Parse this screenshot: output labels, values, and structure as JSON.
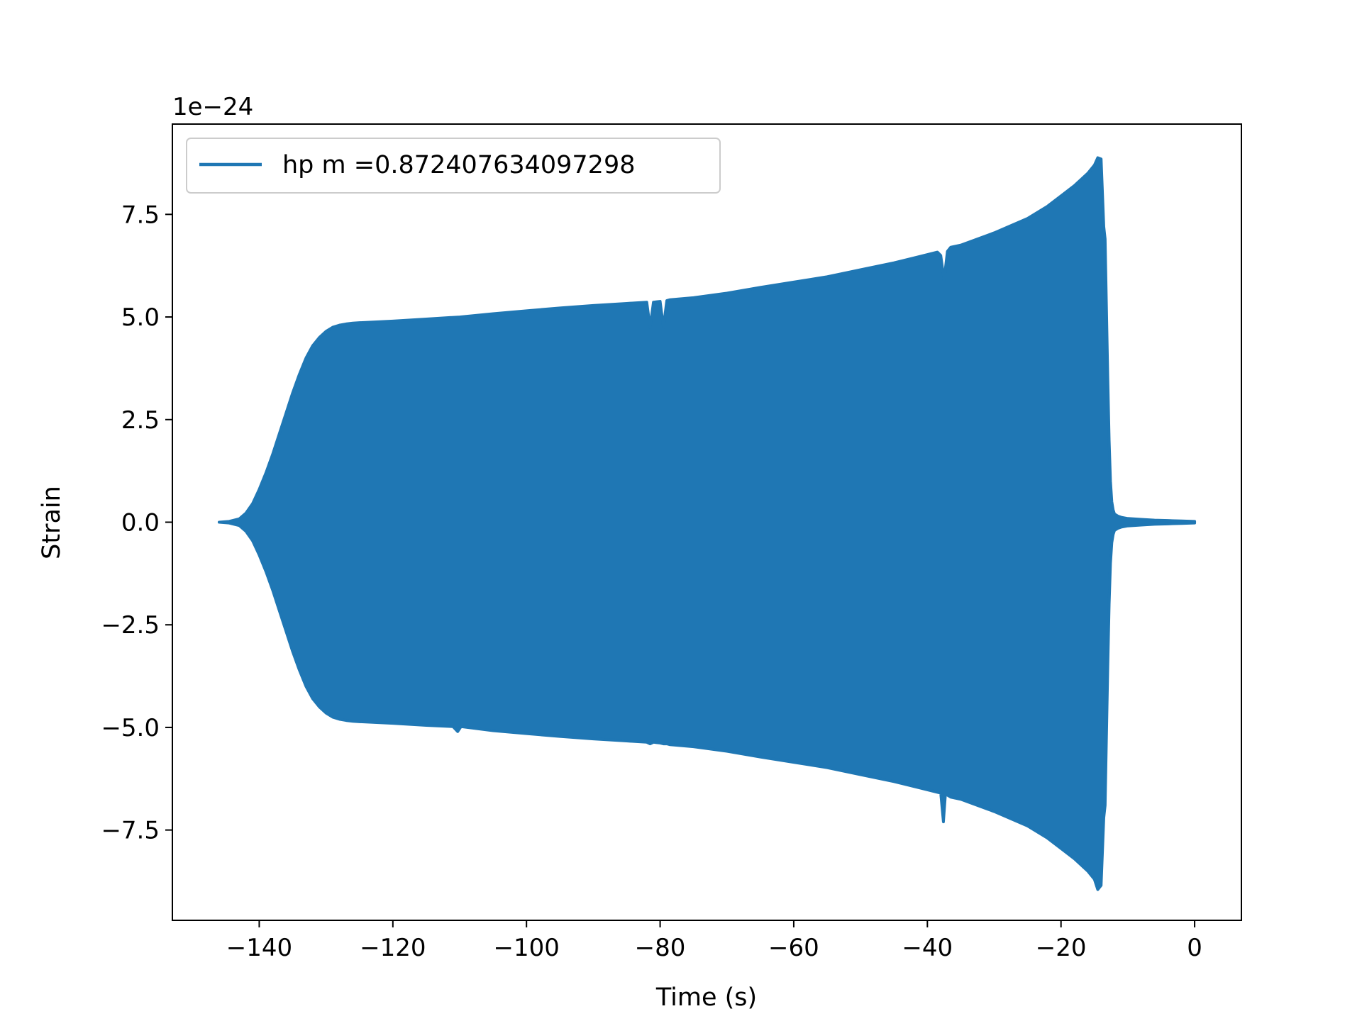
{
  "chart_data": {
    "type": "area",
    "xlabel": "Time (s)",
    "ylabel": "Strain",
    "y_offset_text": "1e−24",
    "y_scale": 1e-24,
    "xlim": [
      -153,
      7
    ],
    "ylim": [
      -9.7,
      9.7
    ],
    "x_ticks": [
      -140,
      -120,
      -100,
      -80,
      -60,
      -40,
      -20,
      0
    ],
    "x_tick_labels": [
      "−140",
      "−120",
      "−100",
      "−80",
      "−60",
      "−40",
      "−20",
      "0"
    ],
    "y_ticks": [
      -7.5,
      -5.0,
      -2.5,
      0.0,
      2.5,
      5.0,
      7.5
    ],
    "y_tick_labels": [
      "−7.5",
      "−5.0",
      "−2.5",
      "0.0",
      "2.5",
      "5.0",
      "7.5"
    ],
    "grid": false,
    "legend_position": "upper-left",
    "series": [
      {
        "name": "hp m =0.872407634097298",
        "color": "#1f77b4",
        "envelope_upper": {
          "x": [
            -146,
            -144.5,
            -143,
            -142,
            -141,
            -140,
            -139,
            -138,
            -137,
            -136,
            -135,
            -134,
            -133,
            -132,
            -131,
            -130,
            -129,
            -128,
            -127,
            -126,
            -125,
            -120,
            -115,
            -110,
            -105,
            -100,
            -95,
            -90,
            -85,
            -82,
            -81.5,
            -81,
            -80.5,
            -80,
            -79.5,
            -79,
            -78.5,
            -75,
            -70,
            -65,
            -60,
            -55,
            -50,
            -45,
            -41,
            -38.5,
            -38,
            -37.5,
            -37,
            -36.5,
            -35,
            -30,
            -25,
            -22,
            -20,
            -18,
            -16,
            -15,
            -14.5,
            -14,
            -13.6,
            -13.4,
            -13.2,
            -13,
            -12.8,
            -12.6,
            -12.4,
            -12.2,
            -12,
            -11.5,
            -11,
            -10,
            -8,
            -6,
            -4,
            -2,
            0
          ],
          "y": [
            0.0,
            0.02,
            0.08,
            0.22,
            0.45,
            0.8,
            1.2,
            1.65,
            2.15,
            2.65,
            3.15,
            3.6,
            4.0,
            4.3,
            4.5,
            4.65,
            4.75,
            4.8,
            4.83,
            4.85,
            4.86,
            4.9,
            4.95,
            5.0,
            5.08,
            5.15,
            5.22,
            5.28,
            5.33,
            5.36,
            4.75,
            5.36,
            5.37,
            5.38,
            4.75,
            5.4,
            5.42,
            5.47,
            5.58,
            5.72,
            5.85,
            5.98,
            6.15,
            6.32,
            6.48,
            6.58,
            6.5,
            5.9,
            6.6,
            6.7,
            6.75,
            7.05,
            7.4,
            7.7,
            7.95,
            8.2,
            8.5,
            8.7,
            8.88,
            8.85,
            7.2,
            6.9,
            5.2,
            3.5,
            2.0,
            1.0,
            0.5,
            0.3,
            0.2,
            0.15,
            0.12,
            0.09,
            0.07,
            0.05,
            0.04,
            0.03,
            0.02
          ]
        },
        "envelope_lower": {
          "x": [
            -146,
            -144.5,
            -143,
            -142,
            -141,
            -140,
            -139,
            -138,
            -137,
            -136,
            -135,
            -134,
            -133,
            -132,
            -131,
            -130,
            -129,
            -128,
            -127,
            -126,
            -125,
            -120,
            -115,
            -111,
            -110.3,
            -109.8,
            -105,
            -100,
            -95,
            -90,
            -85,
            -82,
            -81.5,
            -81,
            -80.5,
            -80,
            -79.5,
            -79,
            -78.5,
            -75,
            -70,
            -65,
            -60,
            -55,
            -50,
            -45,
            -41,
            -38.5,
            -38,
            -37.6,
            -37.3,
            -37,
            -36.5,
            -35,
            -30,
            -25,
            -22,
            -20,
            -18,
            -16,
            -15,
            -14.5,
            -14,
            -13.6,
            -13.4,
            -13.2,
            -13,
            -12.8,
            -12.6,
            -12.4,
            -12.2,
            -12,
            -11.5,
            -11,
            -10,
            -8,
            -6,
            -4,
            -2,
            0
          ],
          "y": [
            0.0,
            -0.02,
            -0.08,
            -0.22,
            -0.45,
            -0.8,
            -1.2,
            -1.65,
            -2.15,
            -2.65,
            -3.15,
            -3.6,
            -4.0,
            -4.3,
            -4.5,
            -4.65,
            -4.75,
            -4.8,
            -4.83,
            -4.85,
            -4.86,
            -4.9,
            -4.95,
            -4.98,
            -5.1,
            -4.98,
            -5.08,
            -5.15,
            -5.22,
            -5.28,
            -5.33,
            -5.36,
            -5.4,
            -5.36,
            -5.37,
            -5.38,
            -5.4,
            -5.4,
            -5.42,
            -5.47,
            -5.58,
            -5.72,
            -5.85,
            -5.98,
            -6.15,
            -6.32,
            -6.48,
            -6.58,
            -6.6,
            -7.3,
            -6.62,
            -6.65,
            -6.7,
            -6.75,
            -7.05,
            -7.4,
            -7.7,
            -7.95,
            -8.2,
            -8.5,
            -8.7,
            -8.95,
            -8.85,
            -7.2,
            -6.9,
            -5.2,
            -3.5,
            -2.0,
            -1.0,
            -0.5,
            -0.3,
            -0.2,
            -0.15,
            -0.12,
            -0.09,
            -0.07,
            -0.05,
            -0.04,
            -0.03,
            -0.02
          ]
        }
      }
    ]
  }
}
